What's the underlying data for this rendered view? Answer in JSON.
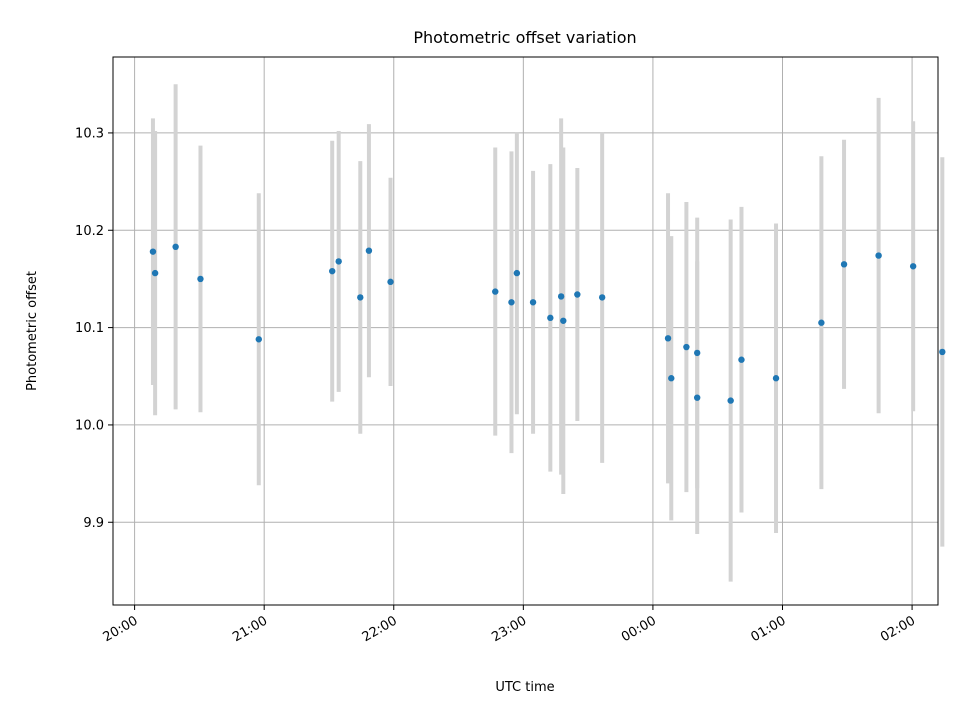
{
  "chart_data": {
    "type": "scatter",
    "title": "Photometric offset variation",
    "xlabel": "UTC time",
    "ylabel": "Photometric offset",
    "grid": true,
    "x_ticks": [
      "20:00",
      "21:00",
      "22:00",
      "23:00",
      "00:00",
      "01:00",
      "02:00"
    ],
    "x_tick_values": [
      0,
      60,
      120,
      180,
      240,
      300,
      360
    ],
    "y_ticks": [
      "9.9",
      "10.0",
      "10.1",
      "10.2",
      "10.3"
    ],
    "y_tick_values": [
      9.9,
      10.0,
      10.1,
      10.2,
      10.3
    ],
    "xlim": [
      -10,
      372
    ],
    "ylim": [
      9.815,
      10.378
    ],
    "colors": {
      "point": "#1f77b4",
      "errorbar": "#d3d3d3"
    },
    "series": [
      {
        "points": [
          {
            "x": 8.5,
            "y": 10.178,
            "err": 0.137
          },
          {
            "x": 9.5,
            "y": 10.156,
            "err": 0.146
          },
          {
            "x": 19.0,
            "y": 10.183,
            "err": 0.167
          },
          {
            "x": 30.5,
            "y": 10.15,
            "err": 0.137
          },
          {
            "x": 57.5,
            "y": 10.088,
            "err": 0.15
          },
          {
            "x": 91.5,
            "y": 10.158,
            "err": 0.134
          },
          {
            "x": 94.5,
            "y": 10.168,
            "err": 0.134
          },
          {
            "x": 104.5,
            "y": 10.131,
            "err": 0.14
          },
          {
            "x": 108.5,
            "y": 10.179,
            "err": 0.13
          },
          {
            "x": 118.5,
            "y": 10.147,
            "err": 0.107
          },
          {
            "x": 167.0,
            "y": 10.137,
            "err": 0.148
          },
          {
            "x": 174.5,
            "y": 10.126,
            "err": 0.155
          },
          {
            "x": 177.0,
            "y": 10.156,
            "err": 0.145
          },
          {
            "x": 184.5,
            "y": 10.126,
            "err": 0.135
          },
          {
            "x": 192.5,
            "y": 10.11,
            "err": 0.158
          },
          {
            "x": 197.5,
            "y": 10.132,
            "err": 0.183
          },
          {
            "x": 198.5,
            "y": 10.107,
            "err": 0.178
          },
          {
            "x": 205.0,
            "y": 10.134,
            "err": 0.13
          },
          {
            "x": 216.5,
            "y": 10.131,
            "err": 0.17
          },
          {
            "x": 247.0,
            "y": 10.089,
            "err": 0.149
          },
          {
            "x": 248.5,
            "y": 10.048,
            "err": 0.146
          },
          {
            "x": 255.5,
            "y": 10.08,
            "err": 0.149
          },
          {
            "x": 260.5,
            "y": 10.074,
            "err": 0.139
          },
          {
            "x": 260.5,
            "y": 10.028,
            "err": 0.14
          },
          {
            "x": 276.0,
            "y": 10.025,
            "err": 0.186
          },
          {
            "x": 281.0,
            "y": 10.067,
            "err": 0.157
          },
          {
            "x": 297.0,
            "y": 10.048,
            "err": 0.159
          },
          {
            "x": 318.0,
            "y": 10.105,
            "err": 0.171
          },
          {
            "x": 328.5,
            "y": 10.165,
            "err": 0.128
          },
          {
            "x": 344.5,
            "y": 10.174,
            "err": 0.162
          },
          {
            "x": 360.5,
            "y": 10.163,
            "err": 0.149
          },
          {
            "x": 374.0,
            "y": 10.075,
            "err": 0.2
          }
        ]
      }
    ]
  }
}
